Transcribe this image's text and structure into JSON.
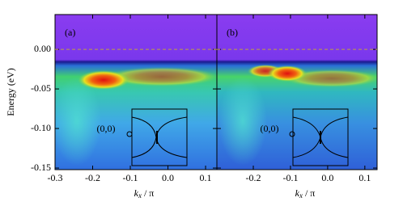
{
  "chart_data": [
    {
      "type": "heatmap",
      "panel_label": "(a)",
      "ylabel": "Energy (eV)",
      "xlabel": "kx / π",
      "inset_label": "(0,0)",
      "xlim": [
        -0.3,
        0.13
      ],
      "xticks": [
        -0.3,
        -0.2,
        -0.1,
        {
          "value": 0,
          "label": "0.0"
        },
        0.1
      ],
      "ylim": [
        -0.152,
        0.044
      ],
      "yticks": [
        {
          "value": 0,
          "label": "0.00"
        },
        -0.05,
        {
          "value": -0.1,
          "label": "-0.10"
        },
        -0.15
      ],
      "zero_line": true
    },
    {
      "type": "heatmap",
      "panel_label": "(b)",
      "xlabel": "kx / π",
      "inset_label": "(0,0)",
      "xlim": [
        -0.298,
        0.133
      ],
      "xticks": [
        -0.2,
        -0.1,
        {
          "value": 0,
          "label": "0.0"
        },
        0.1
      ],
      "ylim": [
        -0.152,
        0.044
      ],
      "yticks": [
        {
          "value": 0,
          "label": "0.00"
        },
        -0.05,
        {
          "value": -0.1,
          "label": "-0.10"
        },
        -0.15
      ],
      "zero_line": true
    }
  ]
}
